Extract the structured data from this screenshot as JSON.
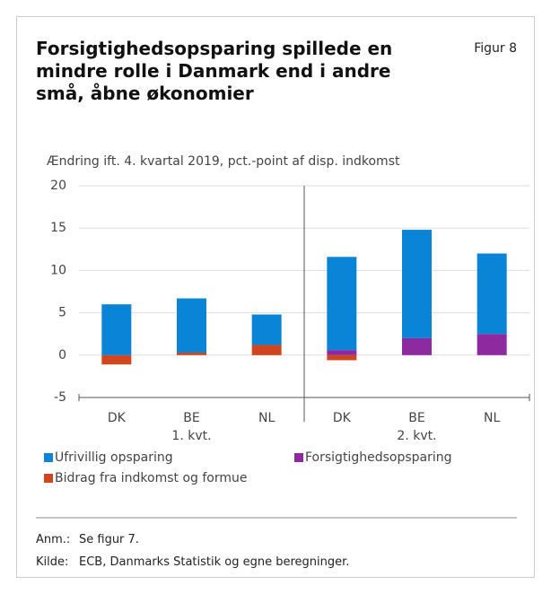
{
  "chart_data": {
    "type": "bar",
    "stacked": true,
    "title": "Forsigtighedsopsparing spillede en mindre rolle i Danmark end i andre små, åbne økonomier",
    "figure_label": "Figur 8",
    "subtitle": "Ændring ift. 4. kvartal 2019, pct.-point af disp. indkomst",
    "categories": [
      "DK",
      "BE",
      "NL",
      "DK",
      "BE",
      "NL"
    ],
    "group_labels": [
      "1. kvt.",
      "2. kvt."
    ],
    "series": [
      {
        "name": "Ufrivillig opsparing",
        "color": "#0a84d6",
        "values": [
          6.0,
          6.4,
          3.6,
          11.0,
          12.8,
          9.5
        ]
      },
      {
        "name": "Forsigtighedsopsparing",
        "color": "#8e2aa0",
        "values": [
          0,
          0,
          0,
          0.6,
          2.0,
          2.5
        ]
      },
      {
        "name": "Bidrag fra indkomst og formue",
        "color": "#d0461f",
        "values": [
          -1.1,
          0.3,
          1.2,
          -0.6,
          0,
          0
        ]
      }
    ],
    "ylim": [
      -5,
      20
    ],
    "yticks": [
      -5,
      0,
      5,
      10,
      15,
      20
    ],
    "grid": true,
    "notes": [
      {
        "label": "Anm.:",
        "text": "Se figur 7."
      },
      {
        "label": "Kilde:",
        "text": "ECB, Danmarks Statistik og egne beregninger."
      }
    ]
  }
}
